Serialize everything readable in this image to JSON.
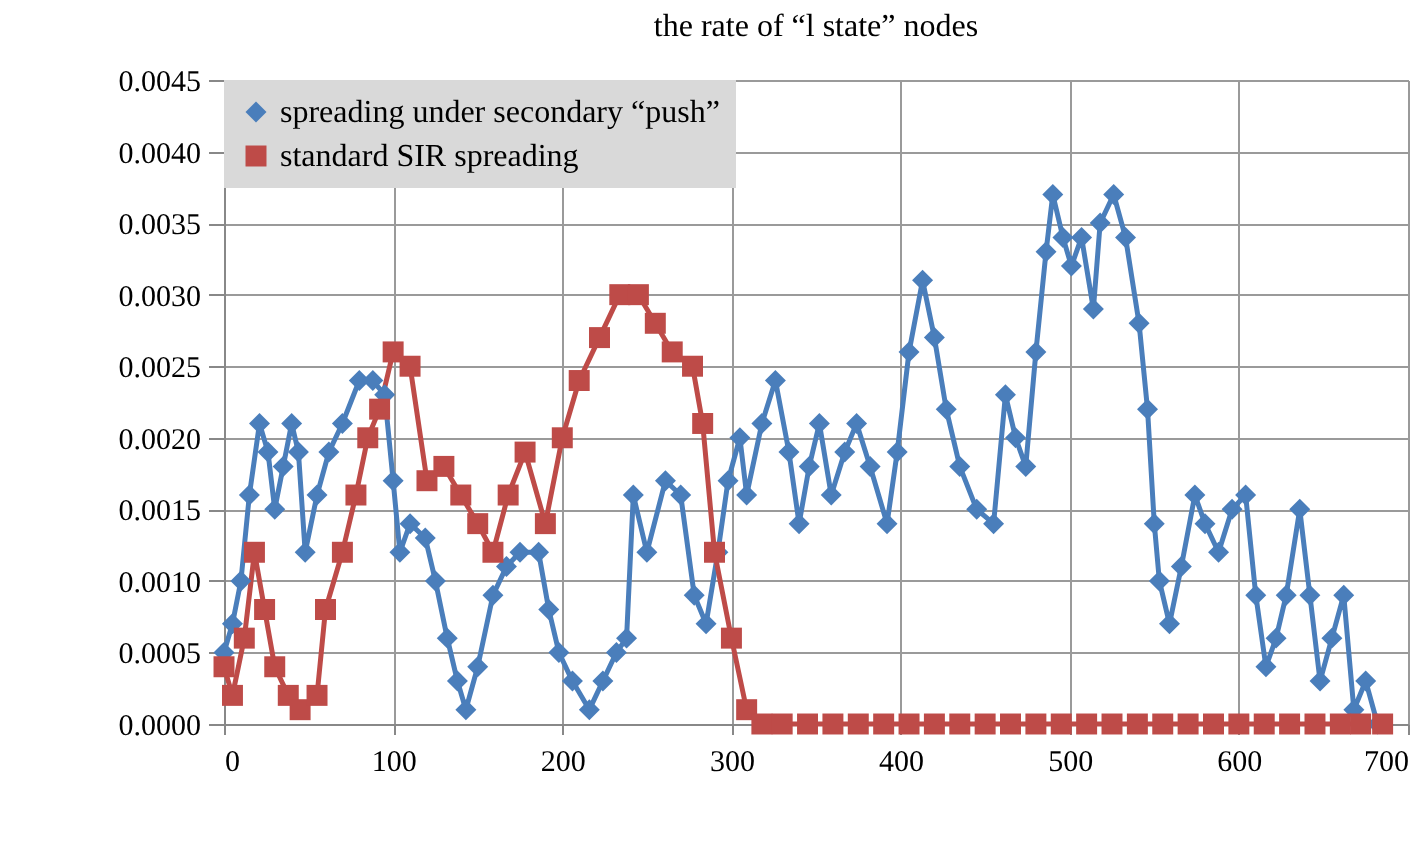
{
  "chart_data": {
    "type": "line",
    "title": "the rate of “l state” nodes",
    "xlim": [
      0,
      700
    ],
    "xticks": [
      0,
      100,
      200,
      300,
      400,
      500,
      600,
      700
    ],
    "ylim": [
      0,
      0.0045
    ],
    "yticks": [
      {
        "value": 0,
        "label": "0.0000"
      },
      {
        "value": 0.0005,
        "label": "0.0005"
      },
      {
        "value": 0.001,
        "label": "0.0010"
      },
      {
        "value": 0.0015,
        "label": "0.0015"
      },
      {
        "value": 0.002,
        "label": "0.0020"
      },
      {
        "value": 0.0025,
        "label": "0.0025"
      },
      {
        "value": 0.003,
        "label": "0.0030"
      },
      {
        "value": 0.0035,
        "label": "0.0035"
      },
      {
        "value": 0.004,
        "label": "0.0040"
      },
      {
        "value": 0.0045,
        "label": "0.0045"
      }
    ],
    "grid": true,
    "legend": "top left",
    "line_style": "solid",
    "series": [
      {
        "name": "spreading under secondary “push”",
        "color": "#4a7ebb",
        "marker": "diamond",
        "x": [
          0,
          5,
          10,
          15,
          21,
          26,
          30,
          35,
          40,
          44,
          48,
          55,
          62,
          70,
          80,
          88,
          95,
          100,
          104,
          110,
          119,
          125,
          132,
          138,
          143,
          150,
          159,
          167,
          175,
          186,
          192,
          198,
          206,
          216,
          224,
          232,
          238,
          242,
          250,
          261,
          270,
          278,
          285,
          292,
          298,
          305,
          309,
          318,
          326,
          334,
          340,
          346,
          352,
          359,
          367,
          374,
          382,
          392,
          398,
          405,
          413,
          420,
          427,
          435,
          445,
          455,
          462,
          468,
          474,
          480,
          486,
          490,
          496,
          501,
          507,
          514,
          518,
          526,
          533,
          541,
          546,
          550,
          553,
          559,
          566,
          574,
          580,
          588,
          596,
          604,
          610,
          616,
          622,
          628,
          636,
          642,
          648,
          655,
          662,
          668,
          675,
          682
        ],
        "values": [
          0.0005,
          0.0007,
          0.001,
          0.0016,
          0.0021,
          0.0019,
          0.0015,
          0.0018,
          0.0021,
          0.0019,
          0.0012,
          0.0016,
          0.0019,
          0.0021,
          0.0024,
          0.0024,
          0.0023,
          0.0017,
          0.0012,
          0.0014,
          0.0013,
          0.001,
          0.0006,
          0.0003,
          0.0001,
          0.0004,
          0.0009,
          0.0011,
          0.0012,
          0.0012,
          0.0008,
          0.0005,
          0.0003,
          0.0001,
          0.0003,
          0.0005,
          0.0006,
          0.0016,
          0.0012,
          0.0017,
          0.0016,
          0.0009,
          0.0007,
          0.0012,
          0.0017,
          0.002,
          0.0016,
          0.0021,
          0.0024,
          0.0019,
          0.0014,
          0.0018,
          0.0021,
          0.0016,
          0.0019,
          0.0021,
          0.0018,
          0.0014,
          0.0019,
          0.0026,
          0.0031,
          0.0027,
          0.0022,
          0.0018,
          0.0015,
          0.0014,
          0.0023,
          0.002,
          0.0018,
          0.0026,
          0.0033,
          0.0037,
          0.0034,
          0.0032,
          0.0034,
          0.0029,
          0.0035,
          0.0037,
          0.0034,
          0.0028,
          0.0022,
          0.0014,
          0.001,
          0.0007,
          0.0011,
          0.0016,
          0.0014,
          0.0012,
          0.0015,
          0.0016,
          0.0009,
          0.0004,
          0.0006,
          0.0009,
          0.0015,
          0.0009,
          0.0003,
          0.0006,
          0.0009,
          0.0001,
          0.0003,
          0
        ]
      },
      {
        "name": "standard SIR spreading",
        "color": "#be4b48",
        "marker": "square",
        "x": [
          0,
          5,
          12,
          18,
          24,
          30,
          38,
          45,
          55,
          60,
          70,
          78,
          85,
          92,
          100,
          110,
          120,
          130,
          140,
          150,
          159,
          168,
          178,
          190,
          200,
          210,
          222,
          234,
          245,
          255,
          265,
          277,
          283,
          290,
          300,
          309,
          318,
          330,
          345,
          360,
          375,
          390,
          405,
          420,
          435,
          450,
          465,
          480,
          495,
          510,
          525,
          540,
          555,
          570,
          585,
          600,
          615,
          630,
          645,
          660,
          672,
          685
        ],
        "values": [
          0.0004,
          0.0002,
          0.0006,
          0.0012,
          0.0008,
          0.0004,
          0.0002,
          0.0001,
          0.0002,
          0.0008,
          0.0012,
          0.0016,
          0.002,
          0.0022,
          0.0026,
          0.0025,
          0.0017,
          0.0018,
          0.0016,
          0.0014,
          0.0012,
          0.0016,
          0.0019,
          0.0014,
          0.002,
          0.0024,
          0.0027,
          0.003,
          0.003,
          0.0028,
          0.0026,
          0.0025,
          0.0021,
          0.0012,
          0.0006,
          0.0001,
          0,
          0,
          0,
          0,
          0,
          0,
          0,
          0,
          0,
          0,
          0,
          0,
          0,
          0,
          0,
          0,
          0,
          0,
          0,
          0,
          0,
          0,
          0,
          0,
          0,
          0
        ]
      }
    ]
  }
}
